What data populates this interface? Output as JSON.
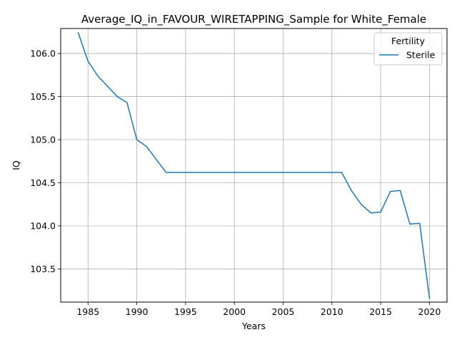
{
  "chart_data": {
    "type": "line",
    "title": "Average_IQ_in_FAVOUR_WIRETAPPING_Sample for White_Female",
    "xlabel": "Years",
    "ylabel": "IQ",
    "xlim": [
      1982.2,
      2021.8
    ],
    "ylim": [
      103.115,
      106.29
    ],
    "xticks": [
      1985,
      1990,
      1995,
      2000,
      2005,
      2010,
      2015,
      2020
    ],
    "yticks": [
      103.5,
      104.0,
      104.5,
      105.0,
      105.5,
      106.0
    ],
    "ytick_labels": [
      "103.5",
      "104.0",
      "104.5",
      "105.0",
      "105.5",
      "106.0"
    ],
    "grid": true,
    "legend": {
      "title": "Fertility",
      "position": "upper right"
    },
    "series": [
      {
        "name": "Sterile",
        "color": "#1f77b4",
        "x": [
          1984,
          1985,
          1986,
          1987,
          1988,
          1989,
          1990,
          1991,
          1992,
          1993,
          1994,
          1995,
          1996,
          1997,
          1998,
          1999,
          2000,
          2001,
          2002,
          2003,
          2004,
          2005,
          2006,
          2007,
          2008,
          2009,
          2010,
          2011,
          2012,
          2013,
          2014,
          2015,
          2016,
          2017,
          2018,
          2019,
          2020
        ],
        "y": [
          106.24,
          105.91,
          105.74,
          105.62,
          105.5,
          105.43,
          105.0,
          104.92,
          104.77,
          104.62,
          104.62,
          104.62,
          104.62,
          104.62,
          104.62,
          104.62,
          104.62,
          104.62,
          104.62,
          104.62,
          104.62,
          104.62,
          104.62,
          104.62,
          104.62,
          104.62,
          104.62,
          104.62,
          104.41,
          104.25,
          104.15,
          104.16,
          104.4,
          104.41,
          104.02,
          104.03,
          103.16
        ]
      }
    ]
  }
}
